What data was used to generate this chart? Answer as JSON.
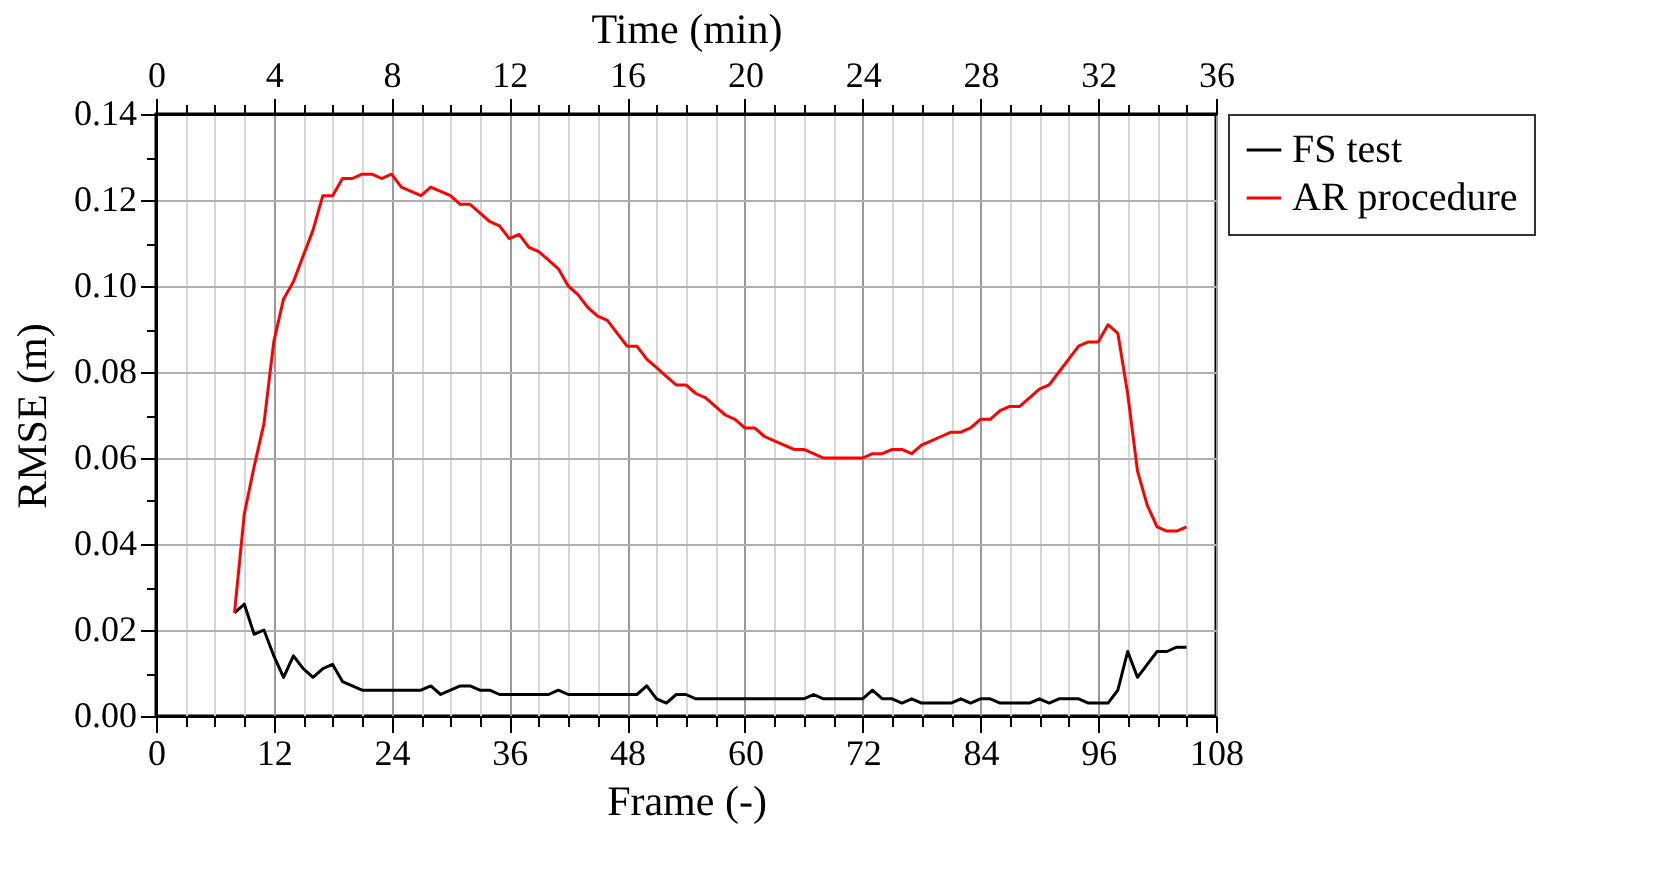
{
  "chart_data": {
    "type": "line",
    "xlabel": "Frame (-)",
    "ylabel": "RMSE (m)",
    "x2label": "Time (min)",
    "x": [
      8,
      9,
      10,
      11,
      12,
      13,
      14,
      15,
      16,
      17,
      18,
      19,
      20,
      21,
      22,
      23,
      24,
      25,
      26,
      27,
      28,
      29,
      30,
      31,
      32,
      33,
      34,
      35,
      36,
      37,
      38,
      39,
      40,
      41,
      42,
      43,
      44,
      45,
      46,
      47,
      48,
      49,
      50,
      51,
      52,
      53,
      54,
      55,
      56,
      57,
      58,
      59,
      60,
      61,
      62,
      63,
      64,
      65,
      66,
      67,
      68,
      69,
      70,
      71,
      72,
      73,
      74,
      75,
      76,
      77,
      78,
      79,
      80,
      81,
      82,
      83,
      84,
      85,
      86,
      87,
      88,
      89,
      90,
      91,
      92,
      93,
      94,
      95,
      96,
      97,
      98,
      99,
      100,
      101,
      102,
      103,
      104,
      105
    ],
    "series": [
      {
        "name": "FS test",
        "color": "#000000",
        "values": [
          0.024,
          0.026,
          0.019,
          0.02,
          0.014,
          0.009,
          0.014,
          0.011,
          0.009,
          0.011,
          0.012,
          0.008,
          0.007,
          0.006,
          0.006,
          0.006,
          0.006,
          0.006,
          0.006,
          0.006,
          0.007,
          0.005,
          0.006,
          0.007,
          0.007,
          0.006,
          0.006,
          0.005,
          0.005,
          0.005,
          0.005,
          0.005,
          0.005,
          0.006,
          0.005,
          0.005,
          0.005,
          0.005,
          0.005,
          0.005,
          0.005,
          0.005,
          0.007,
          0.004,
          0.003,
          0.005,
          0.005,
          0.004,
          0.004,
          0.004,
          0.004,
          0.004,
          0.004,
          0.004,
          0.004,
          0.004,
          0.004,
          0.004,
          0.004,
          0.005,
          0.004,
          0.004,
          0.004,
          0.004,
          0.004,
          0.006,
          0.004,
          0.004,
          0.003,
          0.004,
          0.003,
          0.003,
          0.003,
          0.003,
          0.004,
          0.003,
          0.004,
          0.004,
          0.003,
          0.003,
          0.003,
          0.003,
          0.004,
          0.003,
          0.004,
          0.004,
          0.004,
          0.003,
          0.003,
          0.003,
          0.006,
          0.015,
          0.009,
          0.012,
          0.015,
          0.015,
          0.016,
          0.016
        ]
      },
      {
        "name": "AR procedure",
        "color": "#ff0000",
        "values": [
          0.024,
          0.047,
          0.058,
          0.068,
          0.087,
          0.097,
          0.101,
          0.107,
          0.113,
          0.121,
          0.121,
          0.125,
          0.125,
          0.126,
          0.126,
          0.125,
          0.126,
          0.123,
          0.122,
          0.121,
          0.123,
          0.122,
          0.121,
          0.119,
          0.119,
          0.117,
          0.115,
          0.114,
          0.111,
          0.112,
          0.109,
          0.108,
          0.106,
          0.104,
          0.1,
          0.098,
          0.095,
          0.093,
          0.092,
          0.089,
          0.086,
          0.086,
          0.083,
          0.081,
          0.079,
          0.077,
          0.077,
          0.075,
          0.074,
          0.072,
          0.07,
          0.069,
          0.067,
          0.067,
          0.065,
          0.064,
          0.063,
          0.062,
          0.062,
          0.061,
          0.06,
          0.06,
          0.06,
          0.06,
          0.06,
          0.061,
          0.061,
          0.062,
          0.062,
          0.061,
          0.063,
          0.064,
          0.065,
          0.066,
          0.066,
          0.067,
          0.069,
          0.069,
          0.071,
          0.072,
          0.072,
          0.074,
          0.076,
          0.077,
          0.08,
          0.083,
          0.086,
          0.087,
          0.087,
          0.091,
          0.089,
          0.075,
          0.057,
          0.049,
          0.044,
          0.043,
          0.043,
          0.044
        ]
      }
    ],
    "xlim": [
      0,
      108
    ],
    "xticks": [
      0,
      {
        "value": 3,
        "label": null
      },
      {
        "value": 6,
        "label": null
      },
      {
        "value": 9,
        "label": null
      },
      12,
      {
        "value": 15,
        "label": null
      },
      {
        "value": 18,
        "label": null
      },
      {
        "value": 21,
        "label": null
      },
      24,
      {
        "value": 27,
        "label": null
      },
      {
        "value": 30,
        "label": null
      },
      {
        "value": 33,
        "label": null
      },
      36,
      {
        "value": 39,
        "label": null
      },
      {
        "value": 42,
        "label": null
      },
      {
        "value": 45,
        "label": null
      },
      48,
      {
        "value": 51,
        "label": null
      },
      {
        "value": 54,
        "label": null
      },
      {
        "value": 57,
        "label": null
      },
      60,
      {
        "value": 63,
        "label": null
      },
      {
        "value": 66,
        "label": null
      },
      {
        "value": 69,
        "label": null
      },
      72,
      {
        "value": 75,
        "label": null
      },
      {
        "value": 78,
        "label": null
      },
      {
        "value": 81,
        "label": null
      },
      84,
      {
        "value": 87,
        "label": null
      },
      {
        "value": 90,
        "label": null
      },
      {
        "value": 93,
        "label": null
      },
      96,
      {
        "value": 99,
        "label": null
      },
      {
        "value": 102,
        "label": null
      },
      {
        "value": 105,
        "label": null
      },
      108
    ],
    "x2lim": [
      0,
      36
    ],
    "x2ticks": [
      0,
      {
        "value": 1,
        "label": null
      },
      {
        "value": 2,
        "label": null
      },
      {
        "value": 3,
        "label": null
      },
      4,
      {
        "value": 5,
        "label": null
      },
      {
        "value": 6,
        "label": null
      },
      {
        "value": 7,
        "label": null
      },
      8,
      {
        "value": 9,
        "label": null
      },
      {
        "value": 10,
        "label": null
      },
      {
        "value": 11,
        "label": null
      },
      12,
      {
        "value": 13,
        "label": null
      },
      {
        "value": 14,
        "label": null
      },
      {
        "value": 15,
        "label": null
      },
      16,
      {
        "value": 17,
        "label": null
      },
      {
        "value": 18,
        "label": null
      },
      {
        "value": 19,
        "label": null
      },
      20,
      {
        "value": 21,
        "label": null
      },
      {
        "value": 22,
        "label": null
      },
      {
        "value": 23,
        "label": null
      },
      24,
      {
        "value": 25,
        "label": null
      },
      {
        "value": 26,
        "label": null
      },
      {
        "value": 27,
        "label": null
      },
      28,
      {
        "value": 29,
        "label": null
      },
      {
        "value": 30,
        "label": null
      },
      {
        "value": 31,
        "label": null
      },
      32,
      {
        "value": 33,
        "label": null
      },
      {
        "value": 34,
        "label": null
      },
      {
        "value": 35,
        "label": null
      },
      36
    ],
    "ylim": [
      0,
      0.14
    ],
    "yticks": [
      {
        "value": 0,
        "label": "0.00"
      },
      {
        "value": 0.01,
        "label": null
      },
      {
        "value": 0.02,
        "label": "0.02"
      },
      {
        "value": 0.03,
        "label": null
      },
      {
        "value": 0.04,
        "label": "0.04"
      },
      {
        "value": 0.05,
        "label": null
      },
      {
        "value": 0.06,
        "label": "0.06"
      },
      {
        "value": 0.07,
        "label": null
      },
      {
        "value": 0.08,
        "label": "0.08"
      },
      {
        "value": 0.09,
        "label": null
      },
      {
        "value": 0.1,
        "label": "0.10"
      },
      {
        "value": 0.11,
        "label": null
      },
      {
        "value": 0.12,
        "label": "0.12"
      },
      {
        "value": 0.13,
        "label": null
      },
      {
        "value": 0.14,
        "label": "0.14"
      }
    ],
    "grid": true,
    "legend": "right",
    "line_style": "solid"
  }
}
